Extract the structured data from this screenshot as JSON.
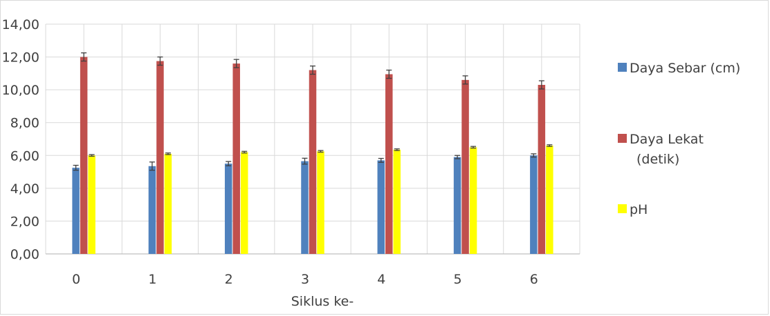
{
  "chart_data": {
    "type": "bar",
    "categories": [
      "0",
      "1",
      "2",
      "3",
      "4",
      "5",
      "6"
    ],
    "xlabel": "Siklus ke-",
    "ylabel": "",
    "ylim": [
      0,
      14
    ],
    "yticks": [
      "0,00",
      "2,00",
      "4,00",
      "6,00",
      "8,00",
      "10,00",
      "12,00",
      "14,00"
    ],
    "grid": true,
    "legend_position": "right",
    "series": [
      {
        "name": "Daya Sebar (cm)",
        "name_lines": [
          "Daya Sebar (cm)"
        ],
        "color": "#4f81bd",
        "values": [
          5.25,
          5.35,
          5.5,
          5.65,
          5.7,
          5.9,
          6.0
        ],
        "errors": [
          0.15,
          0.25,
          0.13,
          0.18,
          0.12,
          0.1,
          0.1
        ]
      },
      {
        "name": "Daya Lekat (detik)",
        "name_lines": [
          "Daya Lekat",
          "(detik)"
        ],
        "color": "#c0504d",
        "values": [
          12.0,
          11.75,
          11.6,
          11.2,
          10.95,
          10.6,
          10.3
        ],
        "errors": [
          0.25,
          0.25,
          0.25,
          0.25,
          0.25,
          0.25,
          0.25
        ]
      },
      {
        "name": "pH",
        "name_lines": [
          "pH"
        ],
        "color": "#ffff00",
        "values": [
          6.0,
          6.1,
          6.2,
          6.25,
          6.35,
          6.5,
          6.6
        ],
        "errors": [
          0.05,
          0.05,
          0.05,
          0.05,
          0.05,
          0.05,
          0.05
        ]
      }
    ]
  }
}
